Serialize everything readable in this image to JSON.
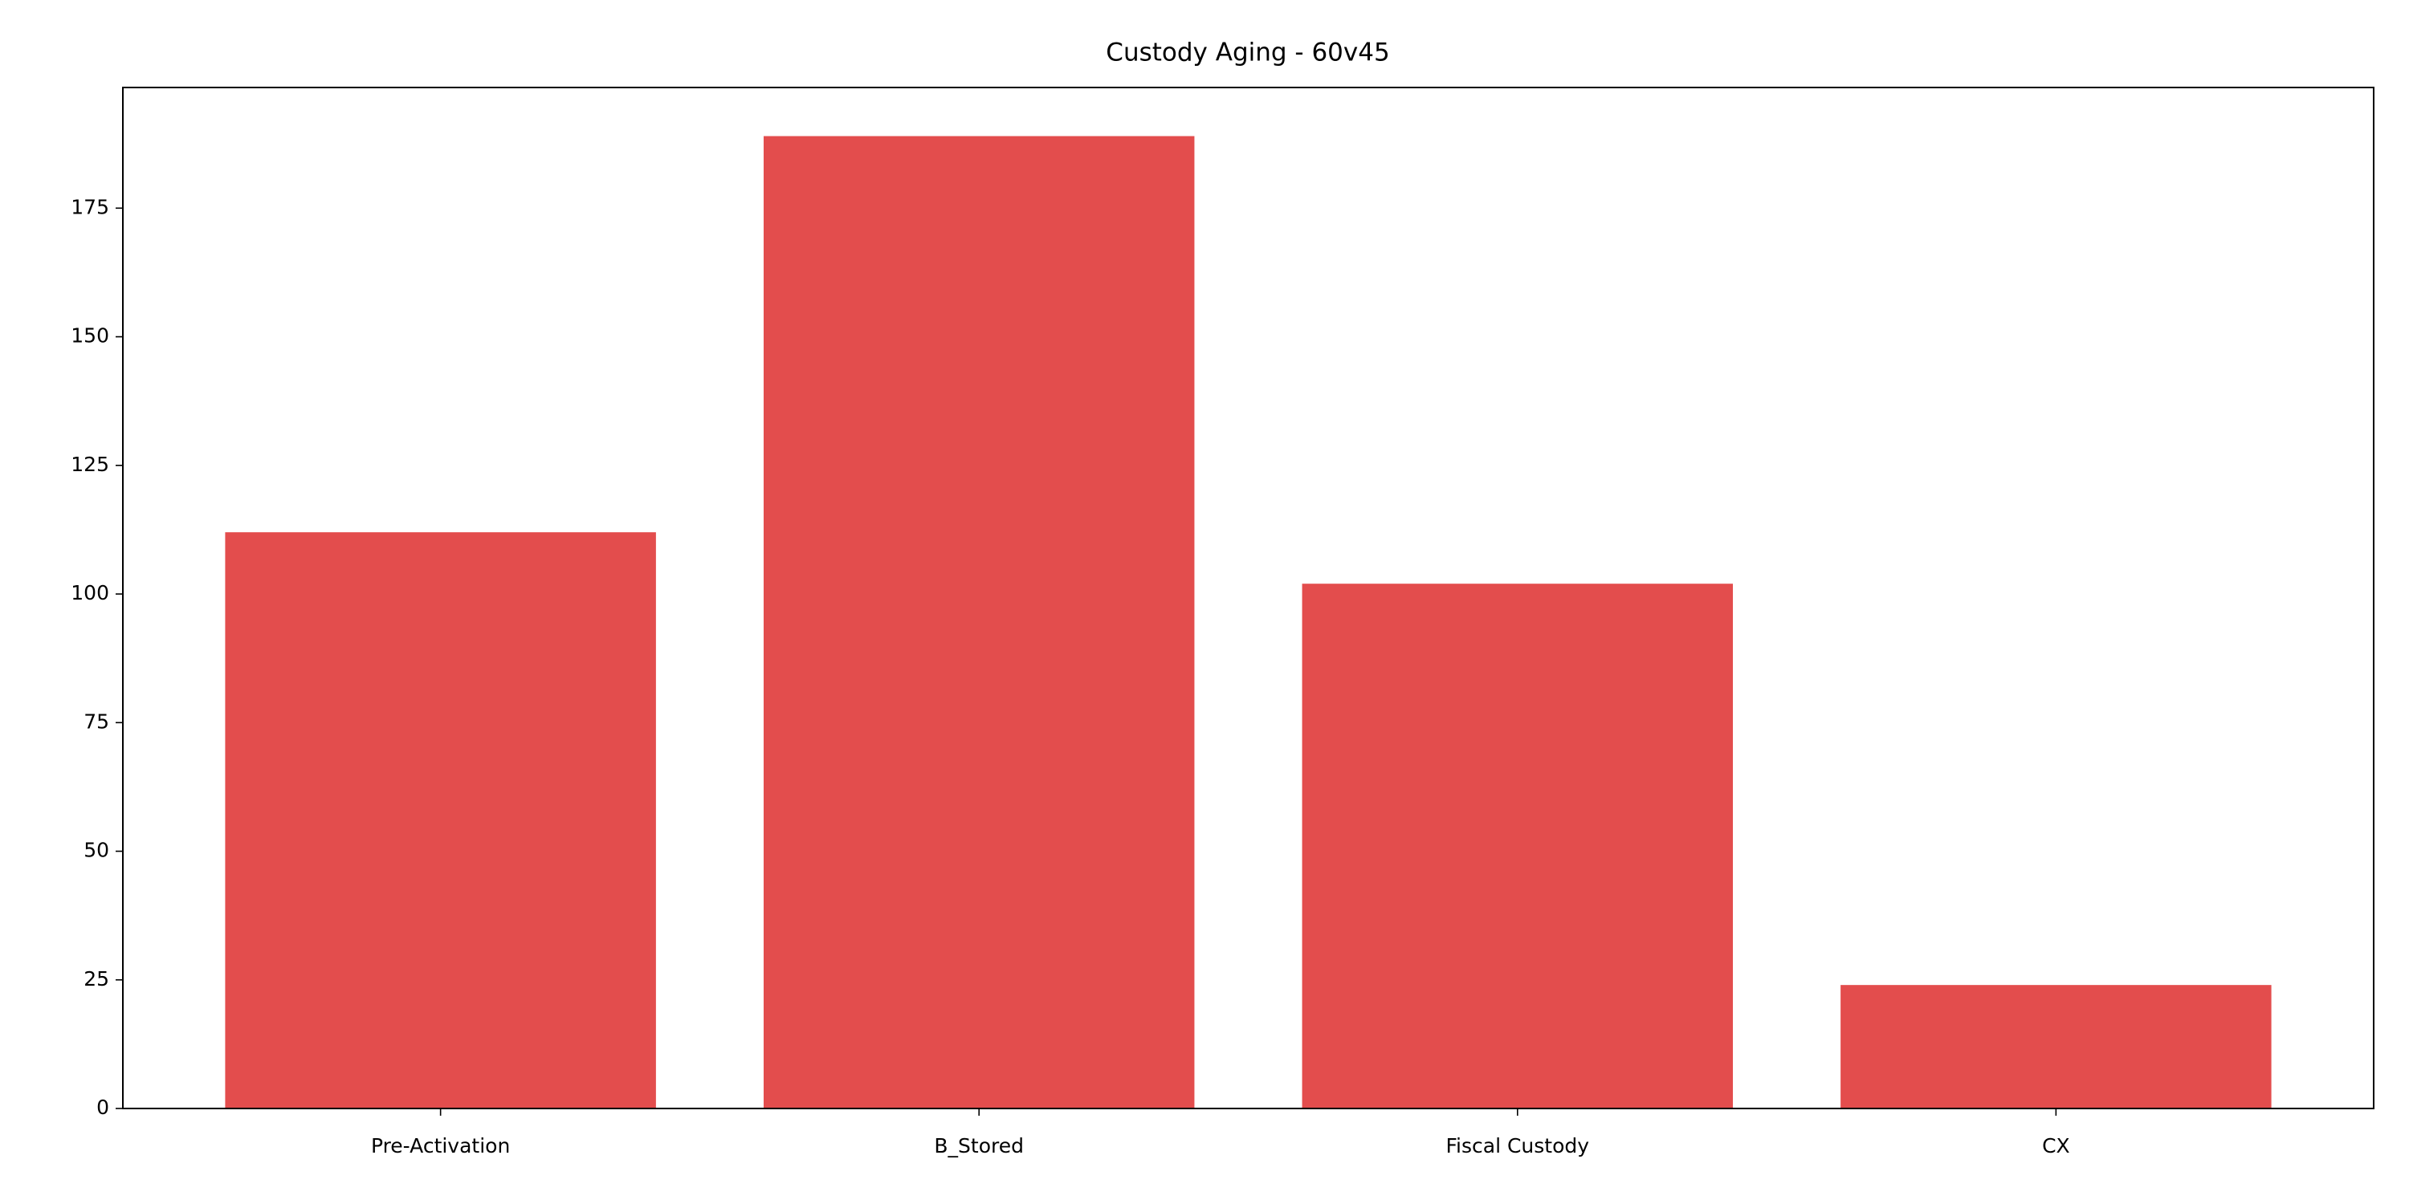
{
  "chart_data": {
    "type": "bar",
    "title": "Custody Aging - 60v45",
    "categories": [
      "Pre-Activation",
      "B_Stored",
      "Fiscal Custody",
      "CX"
    ],
    "values": [
      112,
      189,
      102,
      24
    ],
    "color": "#e34d4d",
    "ylim": [
      0,
      198.45
    ],
    "yticks": [
      0,
      25,
      50,
      75,
      100,
      125,
      150,
      175
    ],
    "grid": false
  }
}
